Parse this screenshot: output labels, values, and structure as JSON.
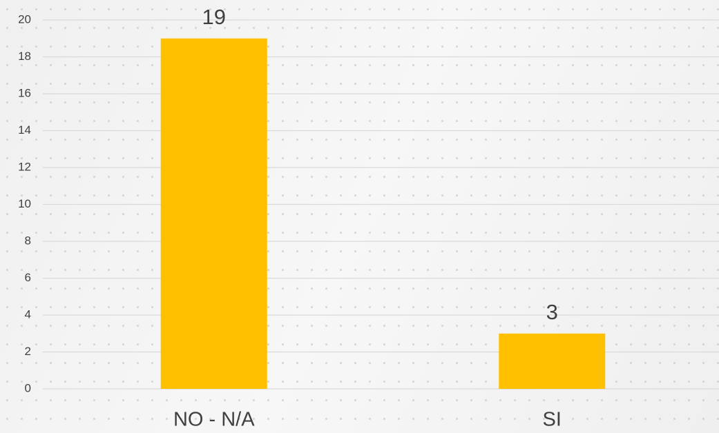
{
  "chart_data": {
    "type": "bar",
    "categories": [
      "NO - N/A",
      "SI"
    ],
    "values": [
      19,
      3
    ],
    "color": "#ffc000",
    "ylim": [
      0,
      20
    ],
    "yticks": [
      0,
      2,
      4,
      6,
      8,
      10,
      12,
      14,
      16,
      18,
      20
    ],
    "grid": true
  }
}
